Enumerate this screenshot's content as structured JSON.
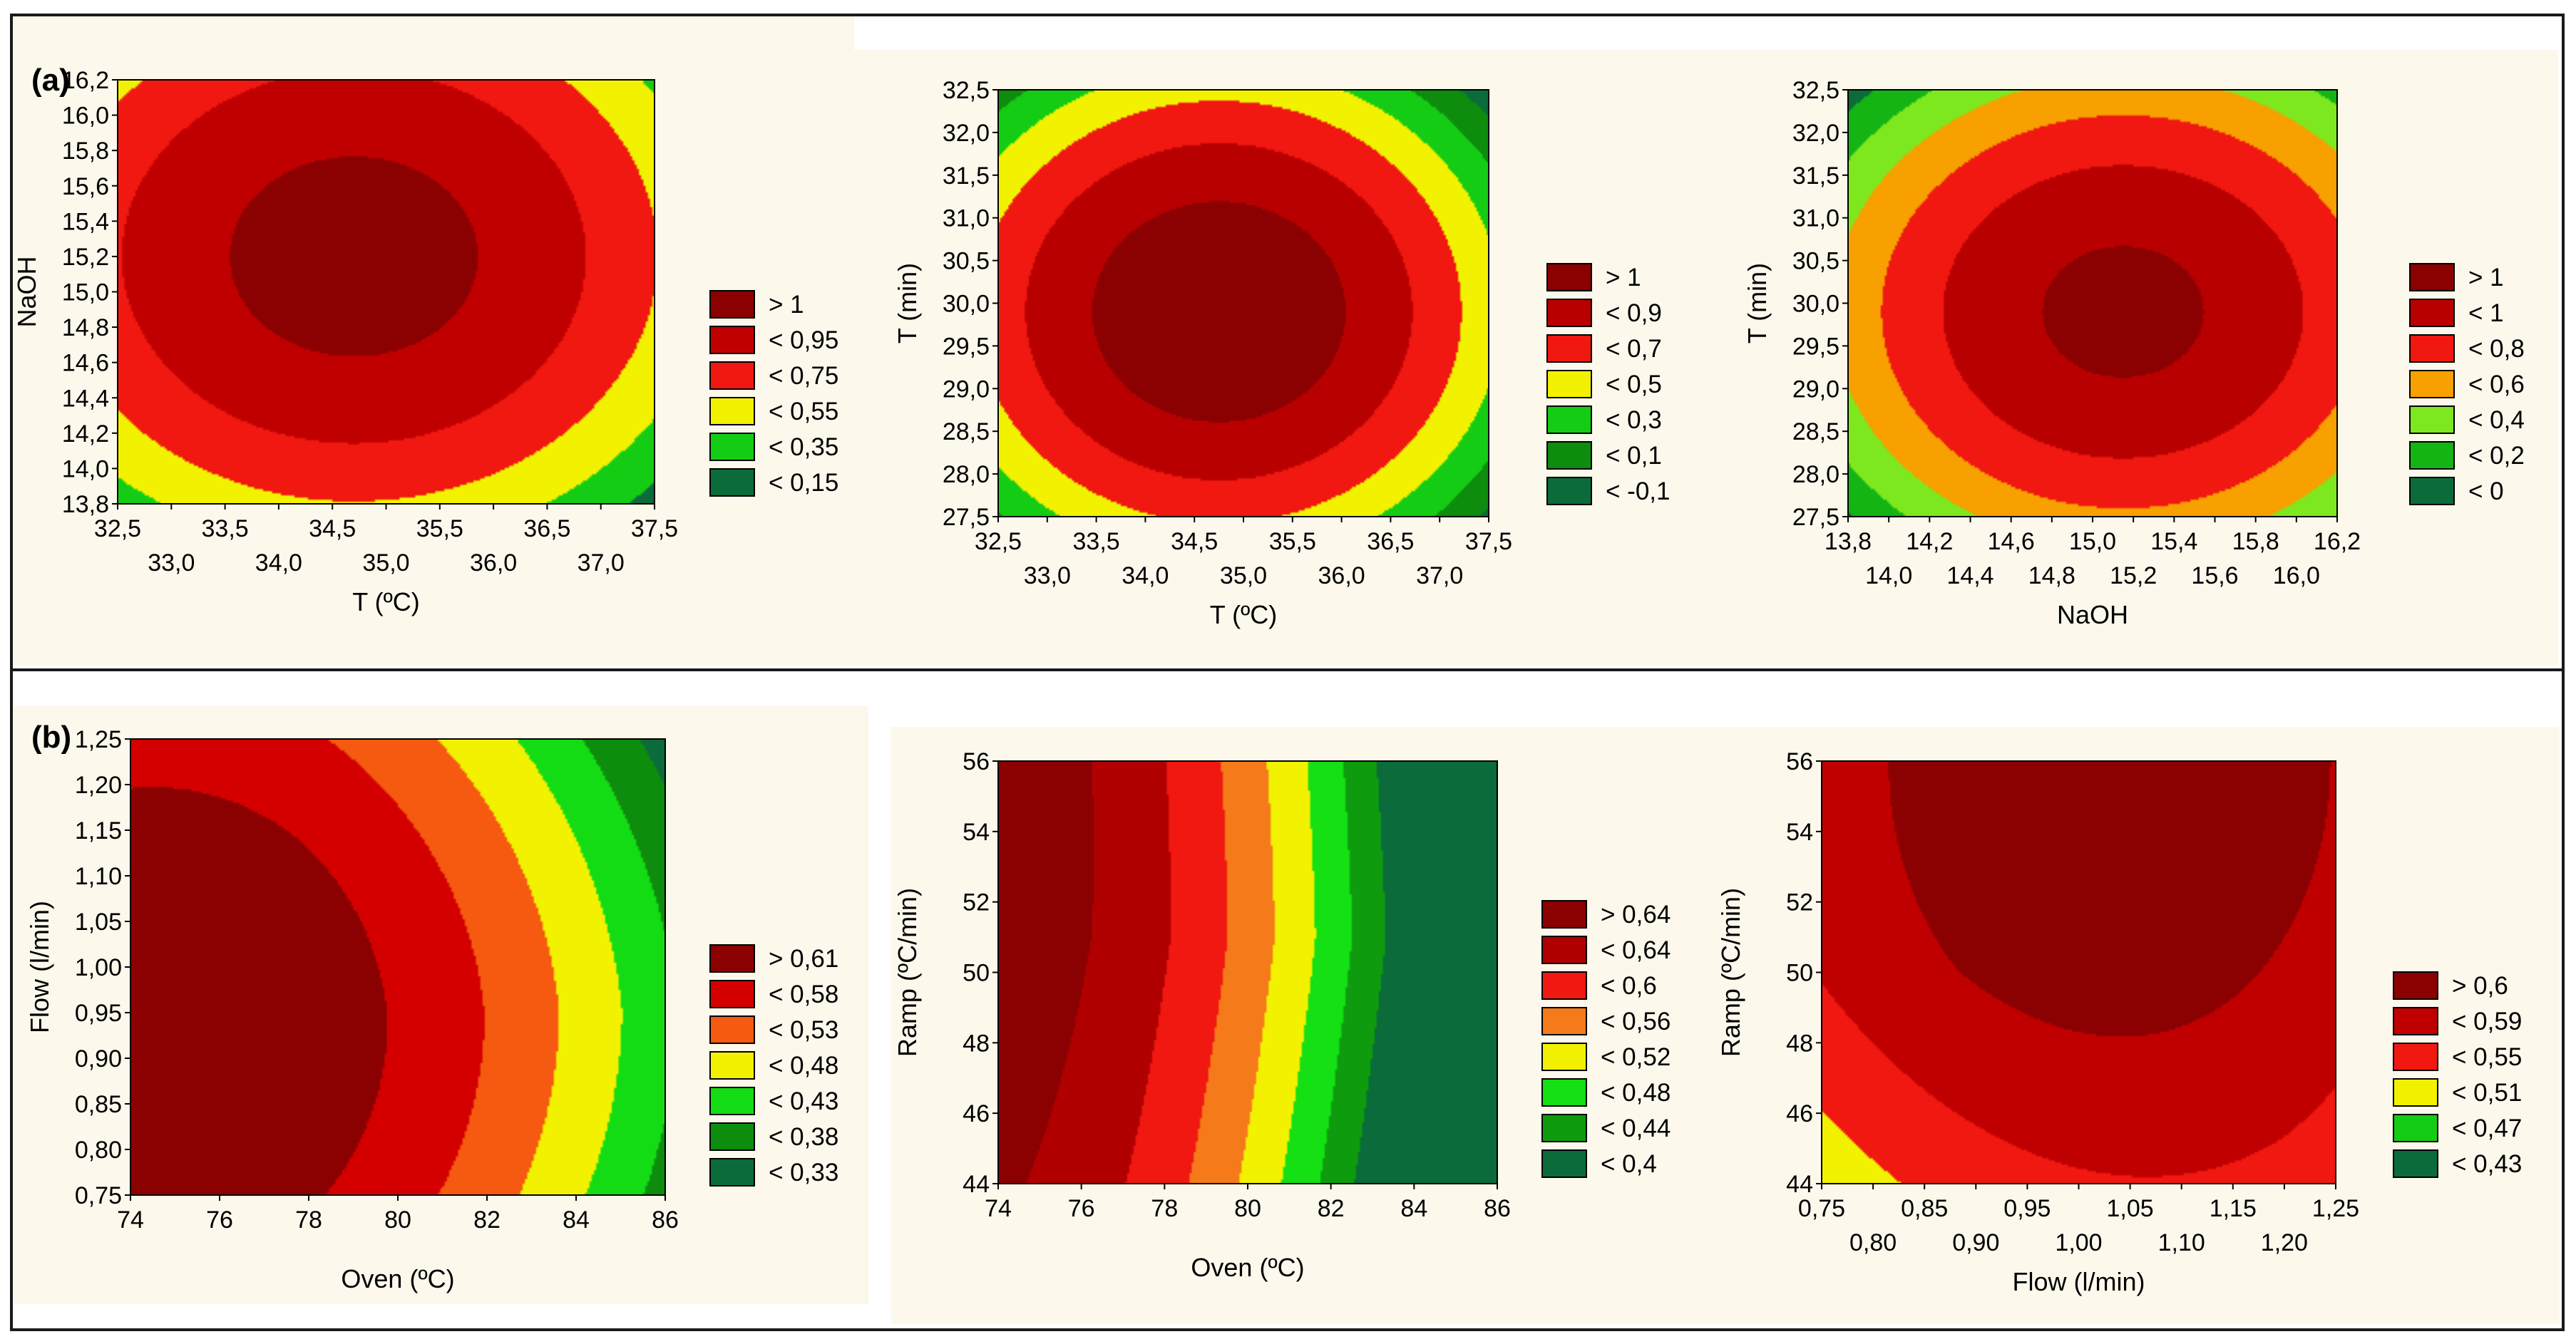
{
  "figure": {
    "panels": [
      {
        "id": "a",
        "label": "(a)"
      },
      {
        "id": "b",
        "label": "(b)"
      }
    ]
  },
  "chart_data": [
    {
      "type": "heatmap",
      "panel": "a",
      "xlabel": "T (ºC)",
      "ylabel": "NaOH",
      "xlim": [
        32.5,
        37.5
      ],
      "ylim": [
        13.8,
        16.2
      ],
      "xticks_row1": [
        "32,5",
        "33,5",
        "34,5",
        "35,5",
        "36,5",
        "37,5"
      ],
      "xticks_row2": [
        "33,0",
        "34,0",
        "35,0",
        "36,0",
        "37,0"
      ],
      "yticks": [
        "13,8",
        "14,0",
        "14,2",
        "14,4",
        "14,6",
        "14,8",
        "15,0",
        "15,2",
        "15,4",
        "15,6",
        "15,8",
        "16,0",
        "16,2"
      ],
      "legend": [
        "> 1",
        "< 0,95",
        "< 0,75",
        "< 0,55",
        "< 0,35",
        "< 0,15"
      ],
      "colors": [
        "#8b0000",
        "#c00000",
        "#f01810",
        "#f2f200",
        "#14cc14",
        "#0b6b3a"
      ],
      "surface": {
        "cx": 34.7,
        "cy": 15.2,
        "peak": 1.03,
        "ax": 0.06,
        "ay": 0.25,
        "ox": 0,
        "oy": 0
      }
    },
    {
      "type": "heatmap",
      "panel": "a",
      "xlabel": "T (ºC)",
      "ylabel": "T (min)",
      "xlim": [
        32.5,
        37.5
      ],
      "ylim": [
        27.5,
        32.5
      ],
      "xticks_row1": [
        "32,5",
        "33,5",
        "34,5",
        "35,5",
        "36,5",
        "37,5"
      ],
      "xticks_row2": [
        "33,0",
        "34,0",
        "35,0",
        "36,0",
        "37,0"
      ],
      "yticks": [
        "27,5",
        "28,0",
        "28,5",
        "29,0",
        "29,5",
        "30,0",
        "30,5",
        "31,0",
        "31,5",
        "32,0",
        "32,5"
      ],
      "legend": [
        "> 1",
        "< 0,9",
        "< 0,7",
        "< 0,5",
        "< 0,3",
        "< 0,1",
        "< -0,1"
      ],
      "colors": [
        "#8b0000",
        "#b80000",
        "#f01810",
        "#f2f200",
        "#14cc14",
        "#0e8c0e",
        "#0b6b3a"
      ],
      "surface": {
        "cx": 34.75,
        "cy": 29.9,
        "peak": 1.05,
        "ax": 0.09,
        "ay": 0.09,
        "ox": 0,
        "oy": 0
      }
    },
    {
      "type": "heatmap",
      "panel": "a",
      "xlabel": "NaOH",
      "ylabel": "T (min)",
      "xlim": [
        13.8,
        16.2
      ],
      "ylim": [
        27.5,
        32.5
      ],
      "xticks_row1": [
        "13,8",
        "14,2",
        "14,6",
        "15,0",
        "15,4",
        "15,8",
        "16,2"
      ],
      "xticks_row2": [
        "14,0",
        "14,4",
        "14,8",
        "15,2",
        "15,6",
        "16,0"
      ],
      "yticks": [
        "27,5",
        "28,0",
        "28,5",
        "29,0",
        "29,5",
        "30,0",
        "30,5",
        "31,0",
        "31,5",
        "32,0",
        "32,5"
      ],
      "legend": [
        "> 1",
        "< 1",
        "< 0,8",
        "< 0,6",
        "< 0,4",
        "< 0,2",
        "< 0"
      ],
      "colors": [
        "#8b0000",
        "#b80000",
        "#f01810",
        "#f7a000",
        "#7ee81e",
        "#14b414",
        "#0b6b3a"
      ],
      "surface": {
        "cx": 15.15,
        "cy": 29.9,
        "peak": 1.05,
        "ax": 0.32,
        "ay": 0.085,
        "ox": 0,
        "oy": 0
      }
    },
    {
      "type": "heatmap",
      "panel": "b",
      "xlabel": "Oven (ºC)",
      "ylabel": "Flow (l/min)",
      "xlim": [
        74,
        86
      ],
      "ylim": [
        0.75,
        1.25
      ],
      "xticks_row1": [
        "74",
        "76",
        "78",
        "80",
        "82",
        "84",
        "86"
      ],
      "xticks_row2": [],
      "yticks": [
        "0,75",
        "0,80",
        "0,85",
        "0,90",
        "0,95",
        "1,00",
        "1,05",
        "1,10",
        "1,15",
        "1,20",
        "1,25"
      ],
      "legend": [
        "> 0,61",
        "< 0,58",
        "< 0,53",
        "< 0,48",
        "< 0,43",
        "< 0,38",
        "< 0,33"
      ],
      "colors": [
        "#8b0000",
        "#d40000",
        "#f55a10",
        "#f2f200",
        "#14dc14",
        "#0e8c0e",
        "#0b6b3a"
      ],
      "surface": {
        "cx": 74.5,
        "cy": 0.93,
        "peak": 0.63,
        "ax": 0.0018,
        "ay": 0.7,
        "ox": 0,
        "oy": 0
      }
    },
    {
      "type": "heatmap",
      "panel": "b",
      "xlabel": "Oven (ºC)",
      "ylabel": "Ramp (ºC/min)",
      "xlim": [
        74,
        86
      ],
      "ylim": [
        44,
        56
      ],
      "xticks_row1": [
        "74",
        "76",
        "78",
        "80",
        "82",
        "84",
        "86"
      ],
      "xticks_row2": [],
      "yticks": [
        "44",
        "46",
        "48",
        "50",
        "52",
        "54",
        "56"
      ],
      "legend": [
        "> 0,64",
        "< 0,64",
        "< 0,6",
        "< 0,56",
        "< 0,52",
        "< 0,48",
        "< 0,44",
        "< 0,4"
      ],
      "colors": [
        "#8b0000",
        "#b00000",
        "#f01810",
        "#f57a1a",
        "#f2f200",
        "#14e014",
        "#0e9c0e",
        "#0b6b3a"
      ],
      "surface": {
        "cx": 73,
        "cy": 56,
        "peak": 0.67,
        "ax": 0.0025,
        "ay": 0.00015,
        "ox": 0,
        "oy": 0
      }
    },
    {
      "type": "heatmap",
      "panel": "b",
      "xlabel": "Flow (l/min)",
      "ylabel": "Ramp (ºC/min)",
      "xlim": [
        0.75,
        1.25
      ],
      "ylim": [
        44,
        56
      ],
      "xticks_row1": [
        "0,75",
        "0,85",
        "0,95",
        "1,05",
        "1,15",
        "1,25"
      ],
      "xticks_row2": [
        "0,80",
        "0,90",
        "1,00",
        "1,10",
        "1,20"
      ],
      "yticks": [
        "44",
        "46",
        "48",
        "50",
        "52",
        "54",
        "56"
      ],
      "legend": [
        "> 0,6",
        "< 0,59",
        "< 0,55",
        "< 0,51",
        "< 0,47",
        "< 0,43"
      ],
      "colors": [
        "#8b0000",
        "#c00000",
        "#f01810",
        "#f2f200",
        "#14cc14",
        "#0b6b3a"
      ],
      "surface": {
        "cx": 1.03,
        "cy": 56,
        "peak": 0.62,
        "ax": 0.65,
        "ay": 0.00045,
        "ox": 0,
        "oy": 0
      }
    }
  ]
}
